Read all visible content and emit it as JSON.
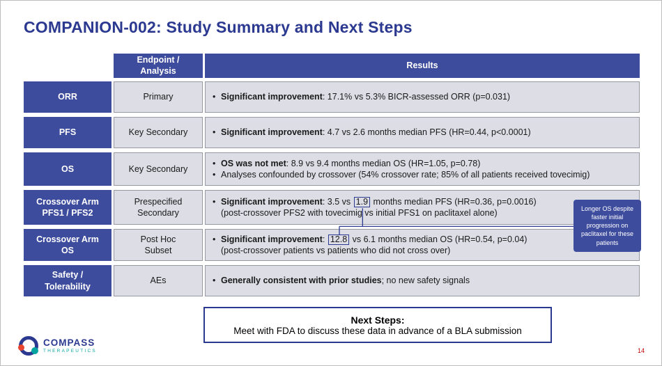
{
  "colors": {
    "brand_blue": "#2B3990",
    "cell_blue": "#3E4C9E",
    "cell_gray": "#DCDDE5",
    "accent_teal": "#00A3A0",
    "accent_red": "#E8442E",
    "page_number_red": "#C00000"
  },
  "slide": {
    "title": "COMPANION-002: Study Summary and Next Steps",
    "page_number": "14"
  },
  "table": {
    "headers": {
      "endpoint": "Endpoint /\nAnalysis",
      "results": "Results"
    },
    "rows": [
      {
        "label": "ORR",
        "analysis": "Primary",
        "bullets": [
          {
            "segments": [
              {
                "text": "Significant improvement",
                "bold": true
              },
              {
                "text": ": 17.1% vs 5.3% BICR-assessed ORR (p=0.031)"
              }
            ]
          }
        ]
      },
      {
        "label": "PFS",
        "analysis": "Key Secondary",
        "bullets": [
          {
            "segments": [
              {
                "text": "Significant improvement",
                "bold": true
              },
              {
                "text": ": 4.7 vs 2.6 months median PFS (HR=0.44, p<0.0001)"
              }
            ]
          }
        ]
      },
      {
        "label": "OS",
        "analysis": "Key Secondary",
        "bullets": [
          {
            "segments": [
              {
                "text": "OS was not met",
                "bold": true
              },
              {
                "text": ": 8.9 vs 9.4 months median OS (HR=1.05, p=0.78)"
              }
            ]
          },
          {
            "segments": [
              {
                "text": "Analyses confounded by crossover (54% crossover rate; 85% of all patients received tovecimig)"
              }
            ]
          }
        ]
      },
      {
        "label": "Crossover Arm\nPFS1 / PFS2",
        "analysis": "Prespecified\nSecondary",
        "bullets": [
          {
            "segments": [
              {
                "text": "Significant improvement",
                "bold": true
              },
              {
                "text": ": 3.5 vs "
              },
              {
                "text": "1.9",
                "boxed": true
              },
              {
                "text": " months median PFS (HR=0.36, p=0.0016)"
              }
            ]
          }
        ],
        "continuation": "(post-crossover PFS2 with tovecimig vs initial PFS1 on paclitaxel alone)"
      },
      {
        "label": "Crossover Arm\nOS",
        "analysis": "Post Hoc\nSubset",
        "bullets": [
          {
            "segments": [
              {
                "text": "Significant improvement",
                "bold": true
              },
              {
                "text": ": "
              },
              {
                "text": "12.8",
                "boxed": true
              },
              {
                "text": " vs 6.1 months median OS (HR=0.54, p=0.04)"
              }
            ]
          }
        ],
        "continuation": "(post-crossover patients vs patients who did not cross over)"
      },
      {
        "label": "Safety /\nTolerability",
        "analysis": "AEs",
        "bullets": [
          {
            "segments": [
              {
                "text": "Generally consistent with prior studies",
                "bold": true
              },
              {
                "text": "; no new safety signals"
              }
            ]
          }
        ]
      }
    ]
  },
  "callout": {
    "text": "Longer OS despite faster initial progression on paclitaxel for these patients"
  },
  "next_steps": {
    "heading": "Next Steps:",
    "body": "Meet with FDA to discuss these data in advance of a BLA submission"
  },
  "logo": {
    "name": "COMPASS",
    "subtitle": "THERAPEUTICS"
  }
}
